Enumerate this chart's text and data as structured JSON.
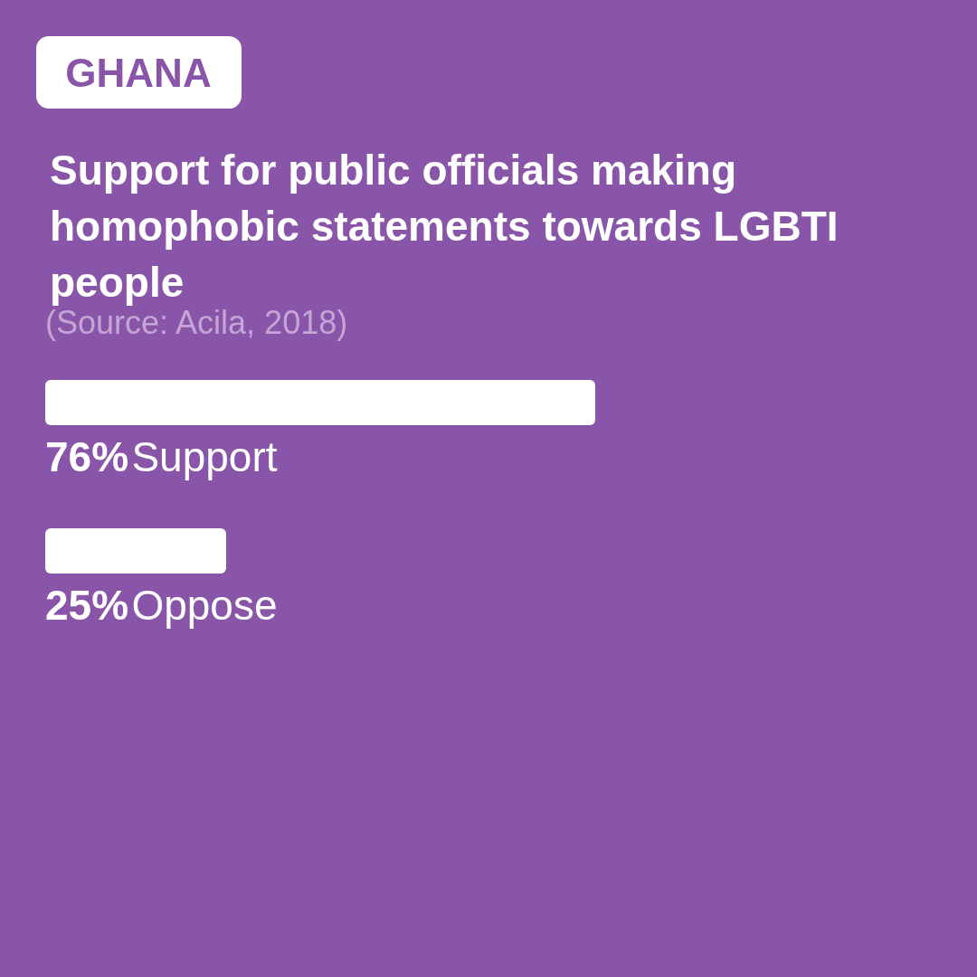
{
  "chart_data": {
    "type": "bar",
    "orientation": "horizontal",
    "title": "Support for public officials making homophobic statements towards LGBTI people",
    "annotations": [
      "GHANA",
      "(Source: Acila, 2018)"
    ],
    "categories": [
      "Support",
      "Oppose"
    ],
    "values": [
      76,
      25
    ],
    "value_labels": [
      "76%",
      "25%"
    ],
    "color": "#ffffff"
  }
}
